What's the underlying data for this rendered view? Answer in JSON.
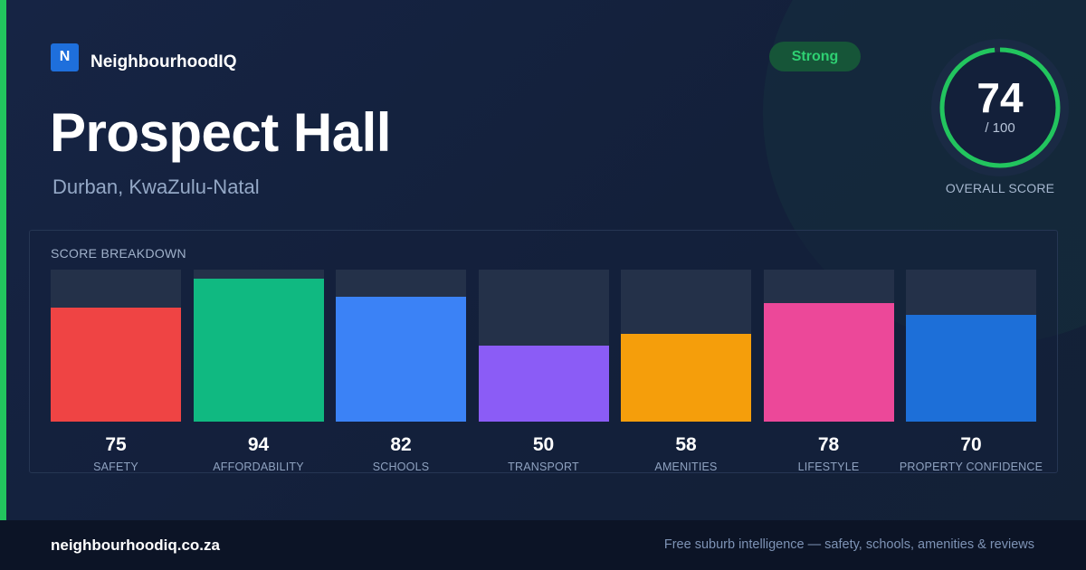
{
  "brand": {
    "logo_letter": "N",
    "name": "NeighbourhoodIQ"
  },
  "suburb": {
    "name": "Prospect Hall",
    "location": "Durban, KwaZulu-Natal"
  },
  "rating_badge": "Strong",
  "overall": {
    "score": "74",
    "max": "/ 100",
    "caption": "OVERALL SCORE",
    "fraction": 0.74
  },
  "breakdown": {
    "heading": "SCORE BREAKDOWN"
  },
  "colors": {
    "accent": "#22c55e",
    "gauge_track": "#1f2d45"
  },
  "chart_data": {
    "type": "bar",
    "title": "",
    "xlabel": "",
    "ylabel": "",
    "ylim": [
      0,
      100
    ],
    "grid": false,
    "categories": [
      "SAFETY",
      "AFFORDABILITY",
      "SCHOOLS",
      "TRANSPORT",
      "AMENITIES",
      "LIFESTYLE",
      "PROPERTY CONFIDENCE"
    ],
    "values": [
      75,
      94,
      82,
      50,
      58,
      78,
      70
    ],
    "colors": [
      "#ef4444",
      "#10b981",
      "#3b82f6",
      "#8b5cf6",
      "#f59e0b",
      "#ec4899",
      "#1d6fd8"
    ]
  },
  "footer": {
    "site": "neighbourhoodiq.co.za",
    "tagline": "Free suburb intelligence — safety, schools, amenities & reviews"
  }
}
